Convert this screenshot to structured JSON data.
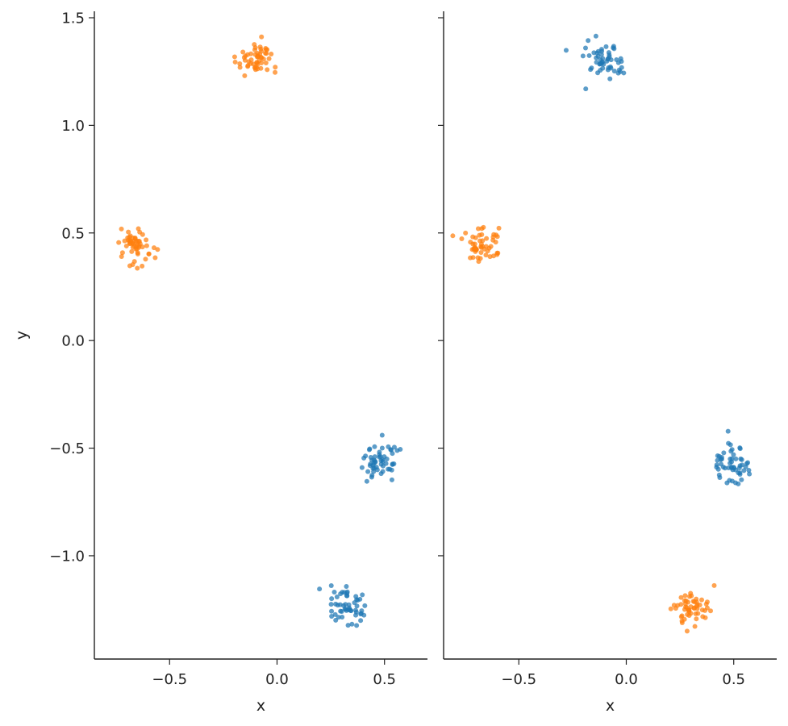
{
  "colors": {
    "blue": "#1f77b4",
    "orange": "#ff7f0e",
    "axis": "#222222"
  },
  "chart_data": [
    {
      "type": "scatter",
      "xlabel": "x",
      "ylabel": "y",
      "xlim": [
        -0.85,
        0.7
      ],
      "ylim": [
        -1.48,
        1.53
      ],
      "xticks": [
        -0.5,
        0.0,
        0.5
      ],
      "xtick_labels": [
        "−0.5",
        "0.0",
        "0.5"
      ],
      "yticks": [
        -1.0,
        -0.5,
        0.0,
        0.5,
        1.0,
        1.5
      ],
      "ytick_labels": [
        "−1.0",
        "−0.5",
        "0.0",
        "0.5",
        "1.0",
        "1.5"
      ],
      "grid": false,
      "spines": [
        "left",
        "bottom"
      ],
      "clusters": [
        {
          "color": "orange",
          "cx": -0.1,
          "cy": 1.3,
          "sx": 0.045,
          "sy": 0.045,
          "n": 55
        },
        {
          "color": "orange",
          "cx": -0.66,
          "cy": 0.43,
          "sx": 0.04,
          "sy": 0.045,
          "n": 55
        },
        {
          "color": "blue",
          "cx": 0.49,
          "cy": -0.56,
          "sx": 0.04,
          "sy": 0.045,
          "n": 55
        },
        {
          "color": "blue",
          "cx": 0.33,
          "cy": -1.24,
          "sx": 0.045,
          "sy": 0.045,
          "n": 55
        }
      ]
    },
    {
      "type": "scatter",
      "xlabel": "x",
      "ylabel": "",
      "xlim": [
        -0.85,
        0.7
      ],
      "ylim": [
        -1.48,
        1.53
      ],
      "xticks": [
        -0.5,
        0.0,
        0.5
      ],
      "xtick_labels": [
        "−0.5",
        "0.0",
        "0.5"
      ],
      "yticks": [
        -1.0,
        -0.5,
        0.0,
        0.5,
        1.0,
        1.5
      ],
      "ytick_labels": [],
      "grid": false,
      "spines": [
        "left",
        "bottom"
      ],
      "clusters": [
        {
          "color": "blue",
          "cx": -0.1,
          "cy": 1.29,
          "sx": 0.045,
          "sy": 0.04,
          "n": 55
        },
        {
          "color": "orange",
          "cx": -0.68,
          "cy": 0.44,
          "sx": 0.04,
          "sy": 0.04,
          "n": 55
        },
        {
          "color": "blue",
          "cx": 0.49,
          "cy": -0.57,
          "sx": 0.045,
          "sy": 0.045,
          "n": 55
        },
        {
          "color": "orange",
          "cx": 0.31,
          "cy": -1.25,
          "sx": 0.04,
          "sy": 0.04,
          "n": 55
        }
      ]
    }
  ]
}
